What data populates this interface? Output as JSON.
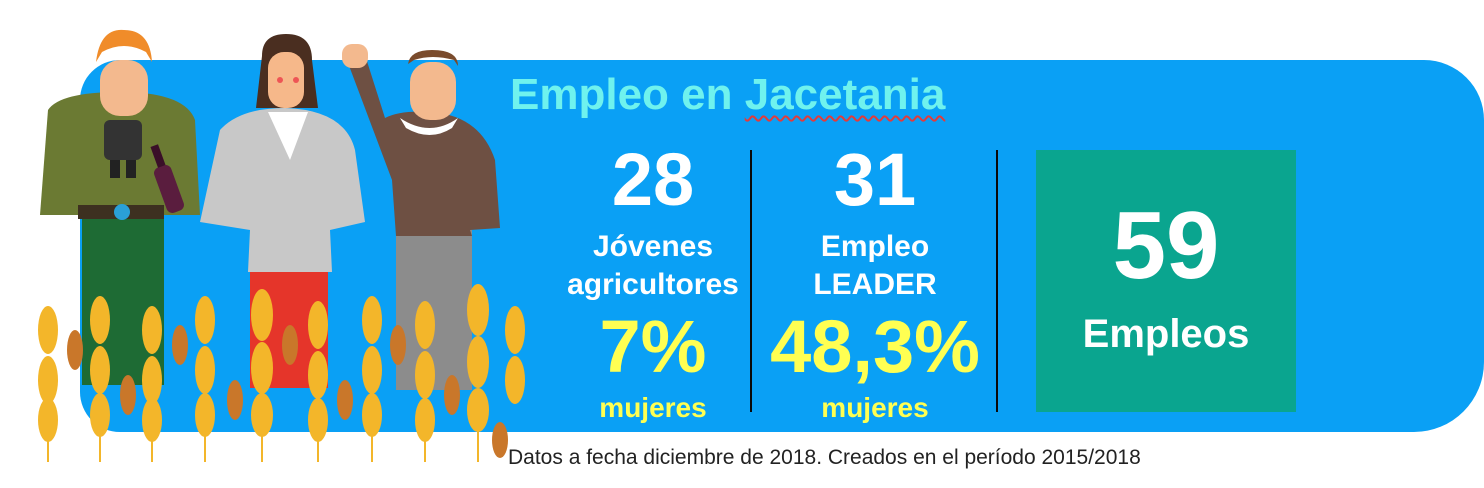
{
  "title": {
    "prefix": "Empleo en ",
    "place": "Jacetania"
  },
  "stats": [
    {
      "number": "28",
      "label_line1": "Jóvenes",
      "label_line2": "agricultores",
      "percent": "7%",
      "percent_label": "mujeres"
    },
    {
      "number": "31",
      "label_line1": "Empleo",
      "label_line2": "LEADER",
      "percent": "48,3%",
      "percent_label": "mujeres"
    }
  ],
  "total": {
    "number": "59",
    "label": "Empleos"
  },
  "footer": "Datos a fecha diciembre de 2018. Creados en el período 2015/2018",
  "colors": {
    "panel": "#0aa0f5",
    "total_box": "#0aa58f",
    "title": "#6ff2ee",
    "highlight": "#ffff52"
  },
  "illustration": "three-farmers-in-wheat-field"
}
